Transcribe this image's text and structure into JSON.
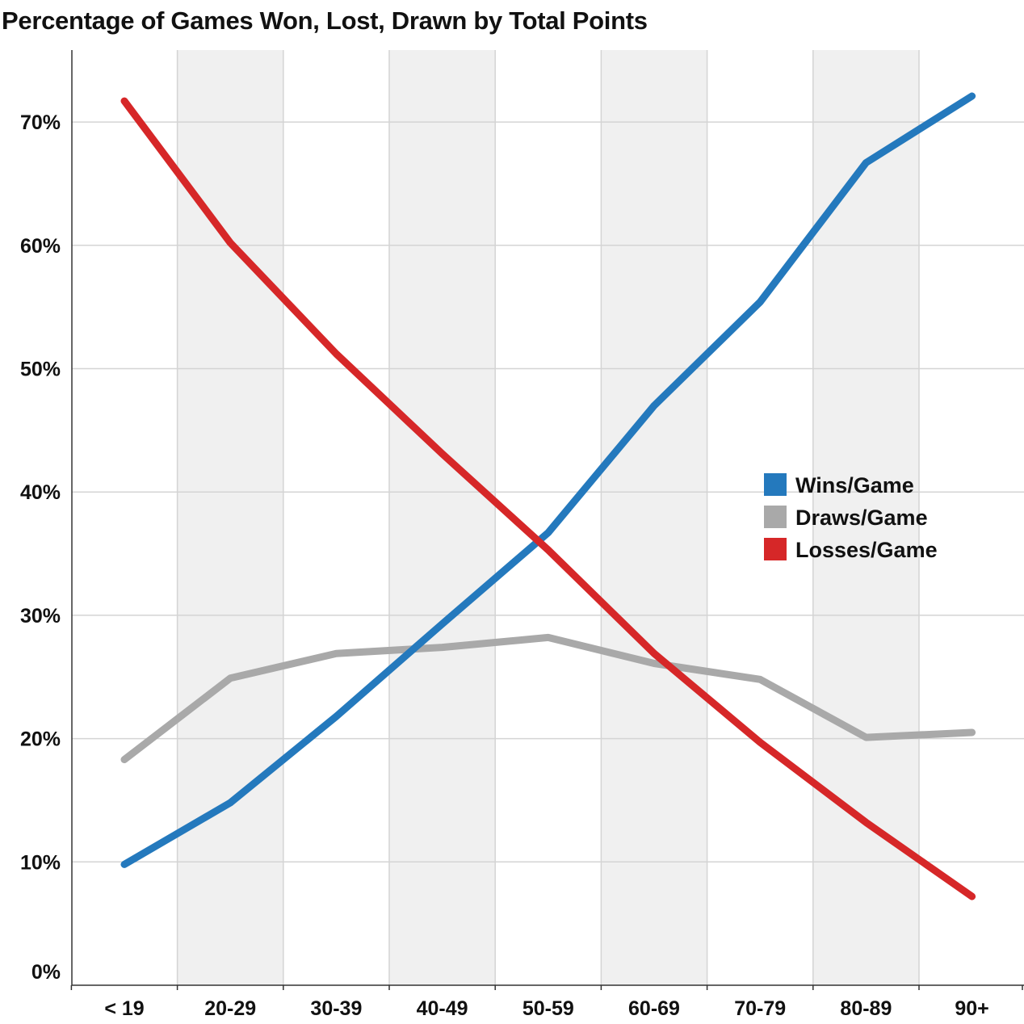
{
  "chart_data": {
    "type": "line",
    "title": "Percentage of Games Won, Lost, Drawn by Total Points",
    "xlabel": "",
    "ylabel": "",
    "categories": [
      "< 19",
      "20-29",
      "30-39",
      "40-49",
      "50-59",
      "60-69",
      "70-79",
      "80-89",
      "90+"
    ],
    "ylim": [
      0,
      75
    ],
    "yticks": [
      0,
      10,
      20,
      30,
      40,
      50,
      60,
      70
    ],
    "ytick_labels": [
      "0%",
      "10%",
      "20%",
      "30%",
      "40%",
      "50%",
      "60%",
      "70%"
    ],
    "grid": true,
    "alternating_band_color": "#f0f0f0",
    "legend_position": "right-middle",
    "series": [
      {
        "name": "Wins/Game",
        "color": "#2479bd",
        "values": [
          9.8,
          14.8,
          21.8,
          29.3,
          36.7,
          47.0,
          55.4,
          66.7,
          72.1
        ]
      },
      {
        "name": "Draws/Game",
        "color": "#a9a9a9",
        "values": [
          18.3,
          24.9,
          26.9,
          27.4,
          28.2,
          26.1,
          24.8,
          20.1,
          20.5
        ]
      },
      {
        "name": "Losses/Game",
        "color": "#d62728",
        "values": [
          71.7,
          60.2,
          51.2,
          43.1,
          35.3,
          26.9,
          19.7,
          13.2,
          7.2
        ]
      }
    ]
  }
}
